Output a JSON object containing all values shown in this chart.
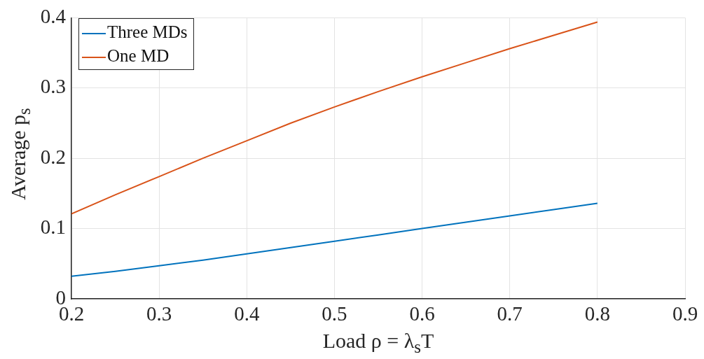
{
  "chart_data": {
    "type": "line",
    "xlabel": "Load ρ = λ$_{s}$T",
    "ylabel": "Average p$_{s}$",
    "x": [
      0.2,
      0.25,
      0.3,
      0.35,
      0.4,
      0.45,
      0.5,
      0.55,
      0.6,
      0.65,
      0.7,
      0.75,
      0.8
    ],
    "series": [
      {
        "name": "Three MDs",
        "color": "#0072bd",
        "values": [
          0.032,
          0.039,
          0.047,
          0.055,
          0.064,
          0.073,
          0.082,
          0.091,
          0.1,
          0.109,
          0.118,
          0.127,
          0.136
        ]
      },
      {
        "name": "One MD",
        "color": "#d95319",
        "values": [
          0.121,
          0.148,
          0.174,
          0.2,
          0.225,
          0.25,
          0.273,
          0.295,
          0.316,
          0.336,
          0.356,
          0.375,
          0.394
        ]
      }
    ],
    "xlim": [
      0.2,
      0.9
    ],
    "xticks": [
      0.2,
      0.3,
      0.4,
      0.5,
      0.6,
      0.7,
      0.8,
      0.9
    ],
    "ylim": [
      0,
      0.4
    ],
    "yticks": [
      0,
      0.1,
      0.2,
      0.3,
      0.4
    ],
    "grid": true,
    "legend": "top left",
    "marker": "none",
    "line_style": "solid"
  }
}
